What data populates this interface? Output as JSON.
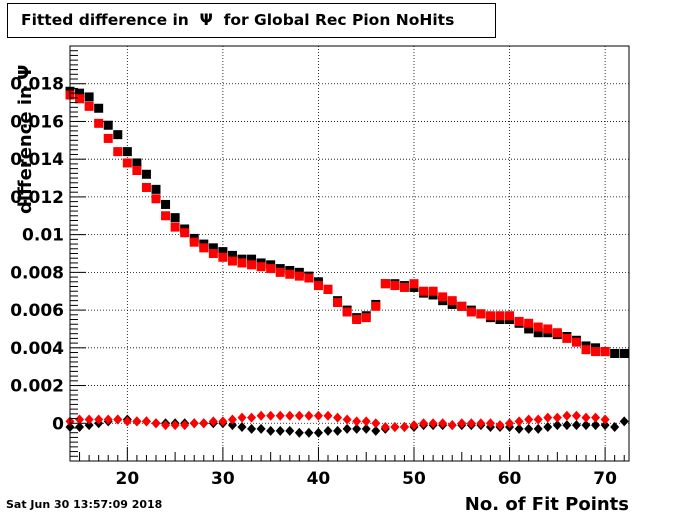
{
  "chart_data": {
    "type": "scatter",
    "title": "Fitted difference in  Ψ  for Global Rec Pion NoHits",
    "xlabel": "No. of Fit Points",
    "ylabel": "difference in Ψ",
    "xlim": [
      14,
      72.5
    ],
    "ylim": [
      -0.002,
      0.02
    ],
    "x_ticks": [
      20,
      30,
      40,
      50,
      60,
      70
    ],
    "y_ticks": [
      0,
      0.002,
      0.004,
      0.006,
      0.008,
      0.01,
      0.012,
      0.014,
      0.016,
      0.018
    ],
    "y_tick_labels": [
      "0",
      "0.002",
      "0.004",
      "0.006",
      "0.008",
      "0.01",
      "0.012",
      "0.014",
      "0.016",
      "0.018"
    ],
    "grid": true,
    "series": [
      {
        "marker": "square",
        "color": "#000000",
        "x": [
          14,
          15,
          16,
          17,
          18,
          19,
          20,
          21,
          22,
          23,
          24,
          25,
          26,
          27,
          28,
          29,
          30,
          31,
          32,
          33,
          34,
          35,
          36,
          37,
          38,
          39,
          40,
          41,
          42,
          43,
          44,
          45,
          46,
          47,
          48,
          49,
          50,
          51,
          52,
          53,
          54,
          55,
          56,
          57,
          58,
          59,
          60,
          61,
          62,
          63,
          64,
          65,
          66,
          67,
          68,
          69,
          70,
          71,
          72
        ],
        "y": [
          0.0176,
          0.0175,
          0.0173,
          0.0167,
          0.0158,
          0.0153,
          0.0144,
          0.0138,
          0.0132,
          0.0124,
          0.0116,
          0.0109,
          0.0103,
          0.0098,
          0.0095,
          0.0093,
          0.0091,
          0.0089,
          0.0087,
          0.0087,
          0.0085,
          0.0084,
          0.0082,
          0.0081,
          0.008,
          0.0078,
          0.0075,
          0.0071,
          0.0065,
          0.006,
          0.0056,
          0.0057,
          0.0063,
          0.0074,
          0.0074,
          0.0073,
          0.0072,
          0.0069,
          0.0068,
          0.0065,
          0.0063,
          0.0062,
          0.006,
          0.0058,
          0.0056,
          0.0055,
          0.0055,
          0.0053,
          0.005,
          0.0048,
          0.0048,
          0.0047,
          0.0046,
          0.0044,
          0.0041,
          0.004,
          0.0038,
          0.0037,
          0.0037
        ]
      },
      {
        "marker": "square",
        "color": "#ff0000",
        "x": [
          14,
          15,
          16,
          17,
          18,
          19,
          20,
          21,
          22,
          23,
          24,
          25,
          26,
          27,
          28,
          29,
          30,
          31,
          32,
          33,
          34,
          35,
          36,
          37,
          38,
          39,
          40,
          41,
          42,
          43,
          44,
          45,
          46,
          47,
          48,
          49,
          50,
          51,
          52,
          53,
          54,
          55,
          56,
          57,
          58,
          59,
          60,
          61,
          62,
          63,
          64,
          65,
          66,
          67,
          68,
          69,
          70
        ],
        "y": [
          0.0174,
          0.0172,
          0.0168,
          0.0159,
          0.0151,
          0.0144,
          0.0138,
          0.0134,
          0.0125,
          0.0119,
          0.011,
          0.0104,
          0.0101,
          0.0096,
          0.0093,
          0.009,
          0.0088,
          0.0086,
          0.0085,
          0.0084,
          0.0083,
          0.0082,
          0.008,
          0.0079,
          0.0078,
          0.0077,
          0.0073,
          0.0071,
          0.0064,
          0.0059,
          0.0055,
          0.0056,
          0.0062,
          0.0074,
          0.0073,
          0.0072,
          0.0074,
          0.007,
          0.007,
          0.0067,
          0.0065,
          0.0062,
          0.0059,
          0.0058,
          0.0057,
          0.0057,
          0.0057,
          0.0054,
          0.0053,
          0.0051,
          0.005,
          0.0048,
          0.0045,
          0.0043,
          0.0039,
          0.0038,
          0.0038
        ]
      },
      {
        "marker": "diamond",
        "color": "#000000",
        "x": [
          14,
          15,
          16,
          17,
          18,
          19,
          20,
          21,
          22,
          23,
          24,
          25,
          26,
          27,
          28,
          29,
          30,
          31,
          32,
          33,
          34,
          35,
          36,
          37,
          38,
          39,
          40,
          41,
          42,
          43,
          44,
          45,
          46,
          47,
          48,
          49,
          50,
          51,
          52,
          53,
          54,
          55,
          56,
          57,
          58,
          59,
          60,
          61,
          62,
          63,
          64,
          65,
          66,
          67,
          68,
          69,
          70,
          71,
          72
        ],
        "y": [
          -0.0002,
          -0.0002,
          -0.0001,
          0.0,
          0.0001,
          0.0002,
          0.0002,
          0.0001,
          0.0001,
          0.0,
          0.0,
          0.0,
          0.0,
          0.0,
          0.0,
          0.0,
          0.0,
          -0.0001,
          -0.0002,
          -0.0003,
          -0.0003,
          -0.0004,
          -0.0004,
          -0.0004,
          -0.0005,
          -0.0005,
          -0.0005,
          -0.0004,
          -0.0004,
          -0.0003,
          -0.0003,
          -0.0003,
          -0.0004,
          -0.0003,
          -0.0002,
          -0.0002,
          -0.0002,
          -0.0001,
          -0.0001,
          -0.0001,
          -0.0001,
          -0.0001,
          -0.0001,
          -0.0001,
          -0.0002,
          -0.0002,
          -0.0002,
          -0.0003,
          -0.0003,
          -0.0003,
          -0.0002,
          -0.0001,
          -0.0001,
          -0.0001,
          -0.0001,
          -0.0001,
          -0.0001,
          -0.0002,
          0.0001
        ]
      },
      {
        "marker": "diamond",
        "color": "#ff0000",
        "x": [
          14,
          15,
          16,
          17,
          18,
          19,
          20,
          21,
          22,
          23,
          24,
          25,
          26,
          27,
          28,
          29,
          30,
          31,
          32,
          33,
          34,
          35,
          36,
          37,
          38,
          39,
          40,
          41,
          42,
          43,
          44,
          45,
          46,
          47,
          48,
          49,
          50,
          51,
          52,
          53,
          54,
          55,
          56,
          57,
          58,
          59,
          60,
          61,
          62,
          63,
          64,
          65,
          66,
          67,
          68,
          69,
          70
        ],
        "y": [
          0.0001,
          0.0002,
          0.0002,
          0.0002,
          0.0002,
          0.0002,
          0.0001,
          0.0001,
          0.0001,
          0.0,
          -0.0001,
          -0.0001,
          -0.0001,
          0.0,
          0.0,
          0.0001,
          0.0001,
          0.0002,
          0.0003,
          0.0003,
          0.0004,
          0.0004,
          0.0004,
          0.0004,
          0.0004,
          0.0004,
          0.0004,
          0.0004,
          0.0003,
          0.0002,
          0.0001,
          0.0001,
          0.0,
          -0.0002,
          -0.0002,
          -0.0002,
          -0.0001,
          0.0,
          0.0,
          0.0,
          -0.0001,
          0.0,
          0.0,
          0.0,
          0.0,
          -0.0001,
          0.0,
          0.0001,
          0.0002,
          0.0002,
          0.0003,
          0.0003,
          0.0004,
          0.0004,
          0.0003,
          0.0003,
          0.0002
        ]
      }
    ]
  },
  "timestamp": "Sat Jun 30 13:57:09 2018"
}
